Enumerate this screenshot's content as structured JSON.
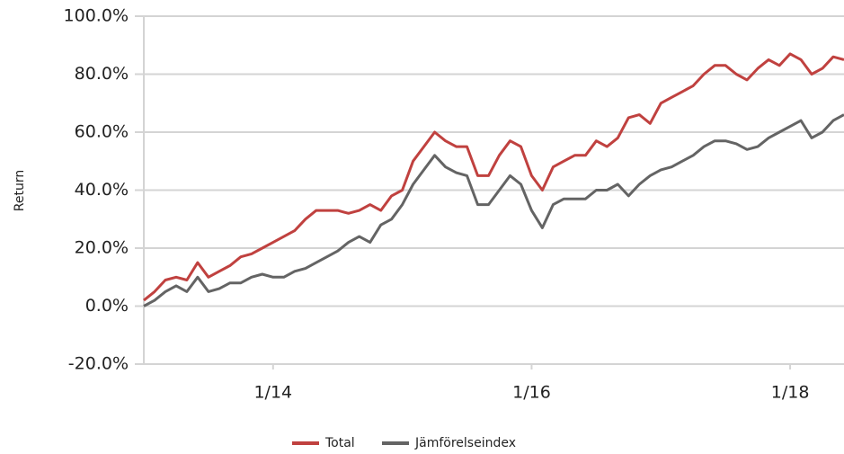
{
  "chart_data": {
    "type": "line",
    "y_label": "Return",
    "x": [
      "2013-01",
      "2013-02",
      "2013-03",
      "2013-04",
      "2013-05",
      "2013-06",
      "2013-07",
      "2013-08",
      "2013-09",
      "2013-10",
      "2013-11",
      "2013-12",
      "2014-01",
      "2014-02",
      "2014-03",
      "2014-04",
      "2014-05",
      "2014-06",
      "2014-07",
      "2014-08",
      "2014-09",
      "2014-10",
      "2014-11",
      "2014-12",
      "2015-01",
      "2015-02",
      "2015-03",
      "2015-04",
      "2015-05",
      "2015-06",
      "2015-07",
      "2015-08",
      "2015-09",
      "2015-10",
      "2015-11",
      "2015-12",
      "2016-01",
      "2016-02",
      "2016-03",
      "2016-04",
      "2016-05",
      "2016-06",
      "2016-07",
      "2016-08",
      "2016-09",
      "2016-10",
      "2016-11",
      "2016-12",
      "2017-01",
      "2017-02",
      "2017-03",
      "2017-04",
      "2017-05",
      "2017-06",
      "2017-07",
      "2017-08",
      "2017-09",
      "2017-10",
      "2017-11",
      "2017-12",
      "2018-01",
      "2018-02",
      "2018-03",
      "2018-04",
      "2018-05",
      "2018-06"
    ],
    "series": [
      {
        "name": "Total",
        "color": "#c0413f",
        "values": [
          2,
          5,
          9,
          10,
          9,
          15,
          10,
          12,
          14,
          17,
          18,
          20,
          22,
          24,
          26,
          30,
          33,
          33,
          33,
          32,
          33,
          35,
          33,
          38,
          40,
          50,
          55,
          60,
          57,
          55,
          55,
          45,
          45,
          52,
          57,
          55,
          45,
          40,
          48,
          50,
          52,
          52,
          57,
          55,
          58,
          65,
          66,
          63,
          70,
          72,
          74,
          76,
          80,
          83,
          83,
          80,
          78,
          82,
          85,
          83,
          87,
          85,
          80,
          82,
          86,
          85
        ]
      },
      {
        "name": "Jämförelseindex",
        "color": "#646464",
        "values": [
          0,
          2,
          5,
          7,
          5,
          10,
          5,
          6,
          8,
          8,
          10,
          11,
          10,
          10,
          12,
          13,
          15,
          17,
          19,
          22,
          24,
          22,
          28,
          30,
          35,
          42,
          47,
          52,
          48,
          46,
          45,
          35,
          35,
          40,
          45,
          42,
          33,
          27,
          35,
          37,
          37,
          37,
          40,
          40,
          42,
          38,
          42,
          45,
          47,
          48,
          50,
          52,
          55,
          57,
          57,
          56,
          54,
          55,
          58,
          60,
          62,
          64,
          58,
          60,
          64,
          66
        ]
      }
    ],
    "xlim": [
      "2013-01",
      "2018-06"
    ],
    "xticks": [
      {
        "value": "2014-01",
        "label": "1/14"
      },
      {
        "value": "2016-01",
        "label": "1/16"
      },
      {
        "value": "2018-01",
        "label": "1/18"
      }
    ],
    "ylim": [
      -20,
      100
    ],
    "yticks": [
      {
        "value": -20,
        "label": "-20.0%"
      },
      {
        "value": 0,
        "label": "0.0%"
      },
      {
        "value": 20,
        "label": "20.0%"
      },
      {
        "value": 40,
        "label": "40.0%"
      },
      {
        "value": 60,
        "label": "60.0%"
      },
      {
        "value": 80,
        "label": "80.0%"
      },
      {
        "value": 100,
        "label": "100.0%"
      }
    ],
    "grid": true,
    "legend": "bottom"
  }
}
